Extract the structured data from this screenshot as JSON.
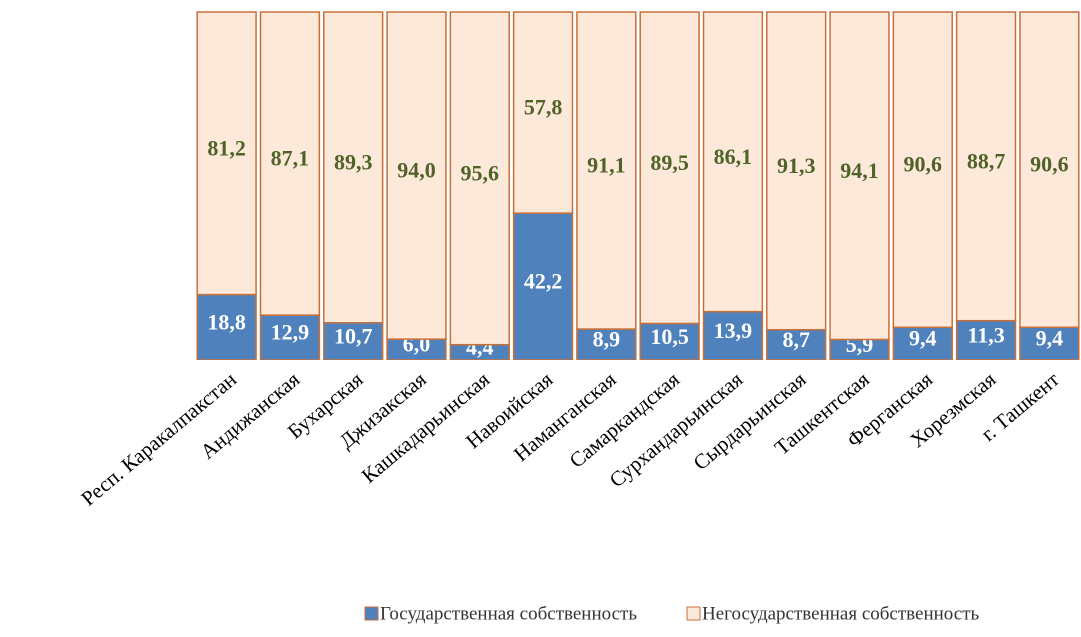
{
  "chart_data": {
    "type": "stacked_bar",
    "categories": [
      "Респ. Каракалпакстан",
      "Андижанская",
      "Бухарская",
      "Джизакская",
      "Кашкадарьинская",
      "Навоийская",
      "Наманганская",
      "Самаркандская",
      "Сурхандарьинская",
      "Сырдарьинская",
      "Ташкентская",
      "Ферганская",
      "Хорезмская",
      "г. Ташкент"
    ],
    "series": [
      {
        "name": "Государственная собственность",
        "color": "#4f81bd",
        "label_color": "#ffffff",
        "values": [
          18.8,
          12.9,
          10.7,
          6.0,
          4.4,
          42.2,
          8.9,
          10.5,
          13.9,
          8.7,
          5.9,
          9.4,
          11.3,
          9.4
        ],
        "value_labels": [
          "18,8",
          "12,9",
          "10,7",
          "6,0",
          "4,4",
          "42,2",
          "8,9",
          "10,5",
          "13,9",
          "8,7",
          "5,9",
          "9,4",
          "11,3",
          "9,4"
        ]
      },
      {
        "name": "Негосударственная собственность",
        "color": "#fde9d9",
        "label_color": "#4f6228",
        "values": [
          81.2,
          87.1,
          89.3,
          94.0,
          95.6,
          57.8,
          91.1,
          89.5,
          86.1,
          91.3,
          94.1,
          90.6,
          88.7,
          90.6
        ],
        "value_labels": [
          "81,2",
          "87,1",
          "89,3",
          "94,0",
          "95,6",
          "57,8",
          "91,1",
          "89,5",
          "86,1",
          "91,3",
          "94,1",
          "90,6",
          "88,7",
          "90,6"
        ]
      }
    ],
    "ylim": [
      0,
      100
    ],
    "legend": "bottom"
  }
}
